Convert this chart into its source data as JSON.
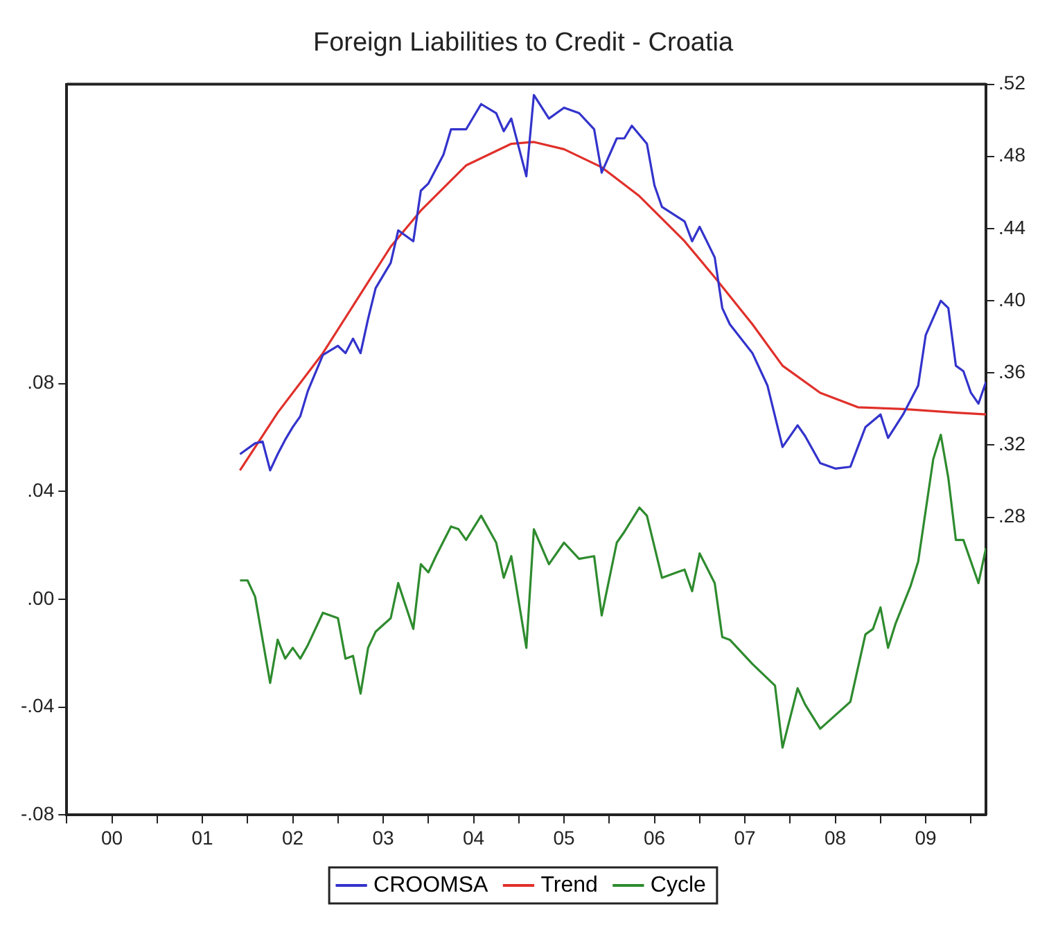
{
  "chart_data": {
    "type": "line",
    "title": "Foreign Liabilities to Credit - Croatia",
    "xlim": [
      "2000-01",
      "2010-03"
    ],
    "xticks": [
      {
        "value": "2000-01",
        "label": null
      },
      {
        "value": "2000-07",
        "label": "00"
      },
      {
        "value": "2001-01",
        "label": null
      },
      {
        "value": "2001-07",
        "label": "01"
      },
      {
        "value": "2002-01",
        "label": null
      },
      {
        "value": "2002-07",
        "label": "02"
      },
      {
        "value": "2003-01",
        "label": null
      },
      {
        "value": "2003-07",
        "label": "03"
      },
      {
        "value": "2004-01",
        "label": null
      },
      {
        "value": "2004-07",
        "label": "04"
      },
      {
        "value": "2005-01",
        "label": null
      },
      {
        "value": "2005-07",
        "label": "05"
      },
      {
        "value": "2006-01",
        "label": null
      },
      {
        "value": "2006-07",
        "label": "06"
      },
      {
        "value": "2007-01",
        "label": null
      },
      {
        "value": "2007-07",
        "label": "07"
      },
      {
        "value": "2008-01",
        "label": null
      },
      {
        "value": "2008-07",
        "label": "08"
      },
      {
        "value": "2009-01",
        "label": null
      },
      {
        "value": "2009-07",
        "label": "09"
      },
      {
        "value": "2010-01",
        "label": null
      }
    ],
    "ylim": [
      -0.08,
      0.191
    ],
    "yticks": [
      {
        "value": -0.08,
        "label": "-.08"
      },
      {
        "value": -0.04,
        "label": "-.04"
      },
      {
        "value": 0,
        "label": ".00"
      },
      {
        "value": 0.04,
        "label": ".04"
      },
      {
        "value": 0.08,
        "label": ".08"
      }
    ],
    "y2lim": [
      0.115,
      0.52
    ],
    "y2ticks": [
      {
        "value": 0.28,
        "label": ".28"
      },
      {
        "value": 0.32,
        "label": ".32"
      },
      {
        "value": 0.36,
        "label": ".36"
      },
      {
        "value": 0.4,
        "label": ".40"
      },
      {
        "value": 0.44,
        "label": ".44"
      },
      {
        "value": 0.48,
        "label": ".48"
      },
      {
        "value": 0.52,
        "label": ".52"
      }
    ],
    "grid": false,
    "legend": "bottom",
    "marker": "none",
    "line_style": "solid",
    "series": [
      {
        "name": "CROOMSA",
        "color": "#3333cc",
        "axis": "y2",
        "x": [
          "2001-12",
          "2002-02",
          "2002-03",
          "2002-04",
          "2002-05",
          "2002-06",
          "2002-07",
          "2002-08",
          "2002-09",
          "2002-11",
          "2003-01",
          "2003-02",
          "2003-03",
          "2003-04",
          "2003-05",
          "2003-06",
          "2003-08",
          "2003-09",
          "2003-11",
          "2003-12",
          "2004-01",
          "2004-03",
          "2004-04",
          "2004-06",
          "2004-08",
          "2004-10",
          "2004-11",
          "2004-12",
          "2005-02",
          "2005-03",
          "2005-05",
          "2005-07",
          "2005-09",
          "2005-11",
          "2005-12",
          "2006-02",
          "2006-03",
          "2006-04",
          "2006-06",
          "2006-07",
          "2006-08",
          "2006-11",
          "2006-12",
          "2007-01",
          "2007-03",
          "2007-04",
          "2007-05",
          "2007-08",
          "2007-10",
          "2007-12",
          "2008-02",
          "2008-03",
          "2008-05",
          "2008-07",
          "2008-09",
          "2008-10",
          "2008-11",
          "2009-01",
          "2009-02",
          "2009-04",
          "2009-06",
          "2009-07",
          "2009-09",
          "2009-10",
          "2009-11",
          "2009-12",
          "2010-01",
          "2010-02",
          "2010-03"
        ],
        "values": [
          0.315,
          0.321,
          0.322,
          0.306,
          0.315,
          0.323,
          0.33,
          0.336,
          0.35,
          0.37,
          0.375,
          0.371,
          0.379,
          0.371,
          0.39,
          0.407,
          0.421,
          0.439,
          0.433,
          0.461,
          0.465,
          0.481,
          0.495,
          0.495,
          0.509,
          0.504,
          0.494,
          0.501,
          0.469,
          0.514,
          0.501,
          0.507,
          0.504,
          0.495,
          0.471,
          0.49,
          0.49,
          0.497,
          0.487,
          0.464,
          0.452,
          0.444,
          0.433,
          0.441,
          0.424,
          0.396,
          0.387,
          0.371,
          0.353,
          0.319,
          0.331,
          0.325,
          0.31,
          0.307,
          0.308,
          0.319,
          0.33,
          0.337,
          0.324,
          0.337,
          0.353,
          0.381,
          0.4,
          0.396,
          0.364,
          0.361,
          0.349,
          0.343,
          0.355
        ]
      },
      {
        "name": "Trend",
        "color": "#e0302a",
        "axis": "y2",
        "x": [
          "2001-12",
          "2002-05",
          "2002-11",
          "2003-08",
          "2003-12",
          "2004-06",
          "2004-12",
          "2005-03",
          "2005-07",
          "2005-12",
          "2006-05",
          "2006-11",
          "2007-03",
          "2007-08",
          "2007-12",
          "2008-05",
          "2008-10",
          "2009-04",
          "2009-11",
          "2010-03"
        ],
        "values": [
          0.306,
          0.338,
          0.371,
          0.43,
          0.45,
          0.475,
          0.487,
          0.488,
          0.484,
          0.474,
          0.458,
          0.433,
          0.413,
          0.387,
          0.364,
          0.349,
          0.341,
          0.34,
          0.338,
          0.337
        ]
      },
      {
        "name": "Cycle",
        "color": "#2e8b2e",
        "x": [
          "2001-12",
          "2002-01",
          "2002-02",
          "2002-03",
          "2002-04",
          "2002-05",
          "2002-06",
          "2002-07",
          "2002-08",
          "2002-09",
          "2002-11",
          "2003-01",
          "2003-02",
          "2003-03",
          "2003-04",
          "2003-05",
          "2003-06",
          "2003-08",
          "2003-09",
          "2003-11",
          "2003-12",
          "2004-01",
          "2004-02",
          "2004-04",
          "2004-05",
          "2004-06",
          "2004-08",
          "2004-10",
          "2004-11",
          "2004-12",
          "2005-02",
          "2005-03",
          "2005-05",
          "2005-07",
          "2005-09",
          "2005-11",
          "2005-12",
          "2006-02",
          "2006-03",
          "2006-05",
          "2006-06",
          "2006-08",
          "2006-10",
          "2006-11",
          "2006-12",
          "2007-01",
          "2007-03",
          "2007-04",
          "2007-05",
          "2007-08",
          "2007-11",
          "2007-12",
          "2008-02",
          "2008-03",
          "2008-05",
          "2008-07",
          "2008-09",
          "2008-11",
          "2008-12",
          "2009-01",
          "2009-02",
          "2009-03",
          "2009-05",
          "2009-06",
          "2009-08",
          "2009-09",
          "2009-10",
          "2009-11",
          "2009-12",
          "2010-02",
          "2010-03"
        ],
        "values": [
          0.007,
          0.007,
          0.001,
          -0.015,
          -0.031,
          -0.015,
          -0.022,
          -0.018,
          -0.022,
          -0.017,
          -0.005,
          -0.007,
          -0.022,
          -0.021,
          -0.035,
          -0.018,
          -0.012,
          -0.007,
          0.006,
          -0.011,
          0.013,
          0.01,
          0.016,
          0.027,
          0.026,
          0.022,
          0.031,
          0.021,
          0.008,
          0.016,
          -0.018,
          0.026,
          0.013,
          0.021,
          0.015,
          0.016,
          -0.006,
          0.021,
          0.025,
          0.034,
          0.031,
          0.008,
          0.01,
          0.011,
          0.003,
          0.017,
          0.006,
          -0.014,
          -0.015,
          -0.024,
          -0.032,
          -0.055,
          -0.033,
          -0.039,
          -0.048,
          -0.043,
          -0.038,
          -0.013,
          -0.011,
          -0.003,
          -0.018,
          -0.009,
          0.005,
          0.014,
          0.052,
          0.061,
          0.045,
          0.022,
          0.022,
          0.006,
          0.019
        ]
      }
    ]
  }
}
